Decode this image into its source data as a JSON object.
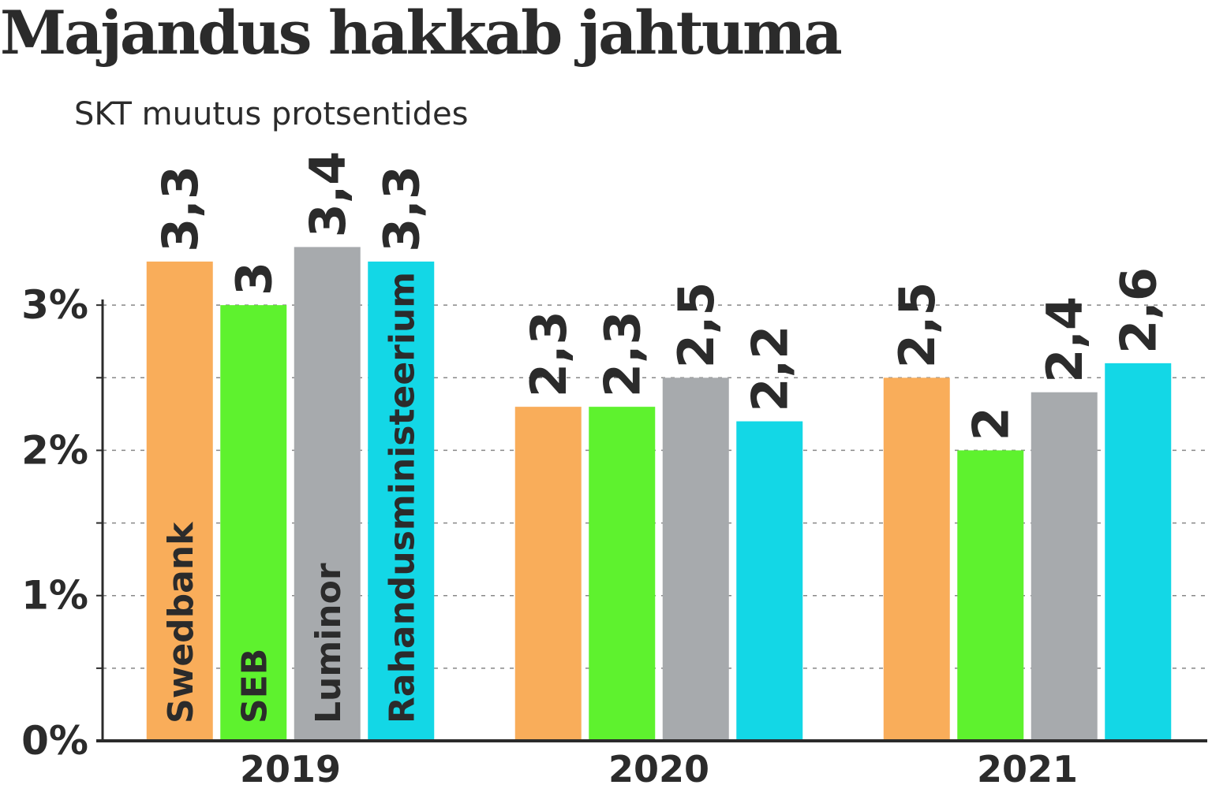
{
  "chart_data": {
    "type": "bar",
    "title": "Majandus hakkab jahtuma",
    "subtitle": "SKT muutus protsentides",
    "categories": [
      "2019",
      "2020",
      "2021"
    ],
    "series": [
      {
        "name": "Swedbank",
        "color": "#f9ad5a",
        "values": [
          3.3,
          2.3,
          2.5
        ],
        "value_labels": [
          "3,3",
          "2,3",
          "2,5"
        ]
      },
      {
        "name": "SEB",
        "color": "#5ef22e",
        "values": [
          3,
          2.3,
          2
        ],
        "value_labels": [
          "3",
          "2,3",
          "2"
        ]
      },
      {
        "name": "Luminor",
        "color": "#a7aaad",
        "values": [
          3.4,
          2.5,
          2.4
        ],
        "value_labels": [
          "3,4",
          "2,5",
          "2,4"
        ]
      },
      {
        "name": "Rahandusministeerium",
        "color": "#13d7e6",
        "values": [
          3.3,
          2.2,
          2.6
        ],
        "value_labels": [
          "3,3",
          "2,2",
          "2,6"
        ]
      }
    ],
    "ylim": [
      0,
      3.5
    ],
    "yticks": [
      {
        "value": 0,
        "label": "0%"
      },
      {
        "value": 1,
        "label": "1%"
      },
      {
        "value": 2,
        "label": "2%"
      },
      {
        "value": 3,
        "label": "3%"
      }
    ],
    "minor_yticks": [
      0.5,
      1.5,
      2.5
    ],
    "grid": true
  }
}
